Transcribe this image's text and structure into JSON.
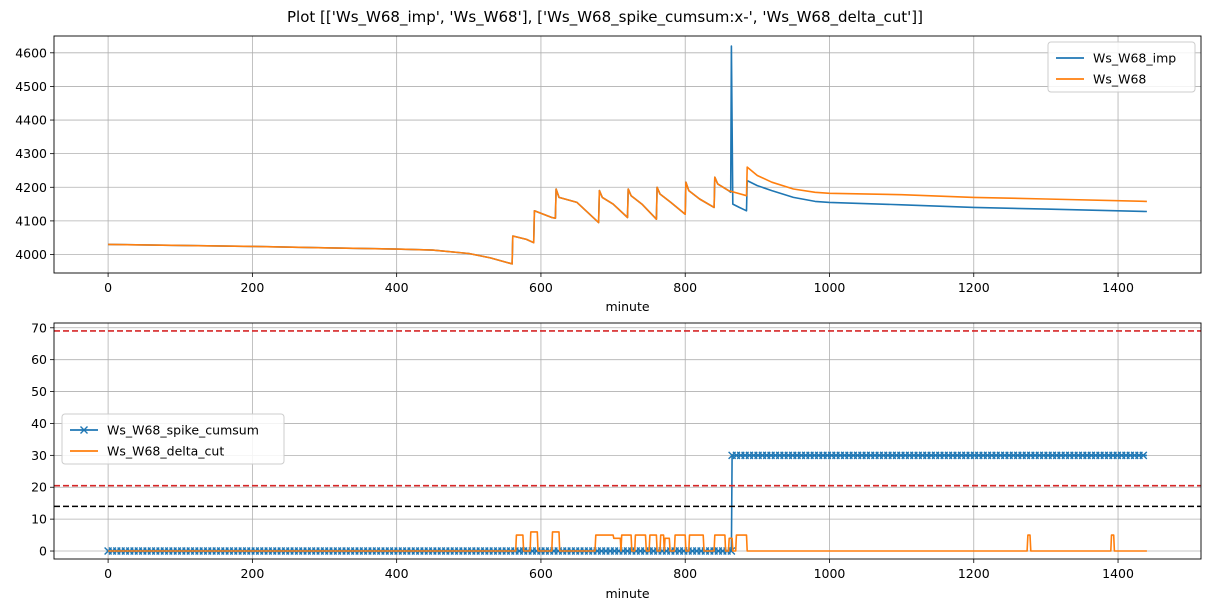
{
  "figure": {
    "title": "Plot [['Ws_W68_imp', 'Ws_W68'], ['Ws_W68_spike_cumsum:x-', 'Ws_W68_delta_cut']]"
  },
  "chart_data": [
    {
      "type": "line",
      "xlabel": "minute",
      "ylabel": "",
      "xlim": [
        -75,
        1515
      ],
      "ylim": [
        3945,
        4650
      ],
      "xticks": [
        0,
        200,
        400,
        600,
        800,
        1000,
        1200,
        1400
      ],
      "yticks": [
        4000,
        4100,
        4200,
        4300,
        4400,
        4500,
        4600
      ],
      "grid": true,
      "legend_position": "upper right",
      "series": [
        {
          "name": "Ws_W68_imp",
          "color": "#1f77b4",
          "points": [
            [
              0,
              4030
            ],
            [
              100,
              4027
            ],
            [
              200,
              4024
            ],
            [
              300,
              4020
            ],
            [
              400,
              4016
            ],
            [
              450,
              4013
            ],
            [
              500,
              4003
            ],
            [
              530,
              3990
            ],
            [
              560,
              3972
            ],
            [
              561,
              4055
            ],
            [
              580,
              4045
            ],
            [
              590,
              4035
            ],
            [
              591,
              4130
            ],
            [
              615,
              4110
            ],
            [
              620,
              4108
            ],
            [
              621,
              4195
            ],
            [
              625,
              4170
            ],
            [
              650,
              4155
            ],
            [
              680,
              4095
            ],
            [
              681,
              4190
            ],
            [
              685,
              4170
            ],
            [
              700,
              4150
            ],
            [
              720,
              4110
            ],
            [
              721,
              4195
            ],
            [
              725,
              4175
            ],
            [
              740,
              4150
            ],
            [
              760,
              4105
            ],
            [
              761,
              4200
            ],
            [
              765,
              4180
            ],
            [
              780,
              4155
            ],
            [
              800,
              4120
            ],
            [
              801,
              4215
            ],
            [
              805,
              4190
            ],
            [
              820,
              4165
            ],
            [
              840,
              4140
            ],
            [
              841,
              4230
            ],
            [
              845,
              4210
            ],
            [
              860,
              4190
            ],
            [
              863,
              4185
            ],
            [
              864,
              4620
            ],
            [
              866,
              4150
            ],
            [
              875,
              4140
            ],
            [
              885,
              4130
            ],
            [
              886,
              4220
            ],
            [
              900,
              4205
            ],
            [
              920,
              4190
            ],
            [
              950,
              4170
            ],
            [
              980,
              4158
            ],
            [
              1000,
              4155
            ],
            [
              1100,
              4148
            ],
            [
              1200,
              4140
            ],
            [
              1300,
              4135
            ],
            [
              1440,
              4128
            ]
          ]
        },
        {
          "name": "Ws_W68",
          "color": "#ff7f0e",
          "points": [
            [
              0,
              4030
            ],
            [
              100,
              4027
            ],
            [
              200,
              4024
            ],
            [
              300,
              4020
            ],
            [
              400,
              4016
            ],
            [
              450,
              4013
            ],
            [
              500,
              4003
            ],
            [
              530,
              3990
            ],
            [
              560,
              3972
            ],
            [
              561,
              4055
            ],
            [
              580,
              4045
            ],
            [
              590,
              4035
            ],
            [
              591,
              4130
            ],
            [
              615,
              4110
            ],
            [
              620,
              4108
            ],
            [
              621,
              4195
            ],
            [
              625,
              4170
            ],
            [
              650,
              4155
            ],
            [
              680,
              4095
            ],
            [
              681,
              4190
            ],
            [
              685,
              4170
            ],
            [
              700,
              4150
            ],
            [
              720,
              4110
            ],
            [
              721,
              4195
            ],
            [
              725,
              4175
            ],
            [
              740,
              4150
            ],
            [
              760,
              4105
            ],
            [
              761,
              4200
            ],
            [
              765,
              4180
            ],
            [
              780,
              4155
            ],
            [
              800,
              4120
            ],
            [
              801,
              4215
            ],
            [
              805,
              4190
            ],
            [
              820,
              4165
            ],
            [
              840,
              4140
            ],
            [
              841,
              4230
            ],
            [
              845,
              4210
            ],
            [
              860,
              4190
            ],
            [
              885,
              4175
            ],
            [
              886,
              4260
            ],
            [
              900,
              4235
            ],
            [
              920,
              4215
            ],
            [
              950,
              4195
            ],
            [
              980,
              4185
            ],
            [
              1000,
              4182
            ],
            [
              1100,
              4178
            ],
            [
              1200,
              4170
            ],
            [
              1300,
              4165
            ],
            [
              1440,
              4158
            ]
          ]
        }
      ]
    },
    {
      "type": "line",
      "xlabel": "minute",
      "ylabel": "",
      "xlim": [
        -75,
        1515
      ],
      "ylim": [
        -2.5,
        71.5
      ],
      "xticks": [
        0,
        200,
        400,
        600,
        800,
        1000,
        1200,
        1400
      ],
      "yticks": [
        0,
        10,
        20,
        30,
        40,
        50,
        60,
        70
      ],
      "grid": true,
      "legend_position": "center left",
      "hlines": [
        {
          "y": 69,
          "color": "#d62728"
        },
        {
          "y": 20.5,
          "color": "#d62728"
        },
        {
          "y": 14,
          "color": "#000000"
        }
      ],
      "series": [
        {
          "name": "Ws_W68_spike_cumsum",
          "color": "#1f77b4",
          "marker": "x",
          "points": [
            [
              0,
              0
            ],
            [
              864,
              0
            ],
            [
              865,
              30
            ],
            [
              1440,
              30
            ]
          ]
        },
        {
          "name": "Ws_W68_delta_cut",
          "color": "#ff7f0e",
          "points": [
            [
              0,
              0
            ],
            [
              565,
              0
            ],
            [
              566,
              5
            ],
            [
              575,
              5
            ],
            [
              576,
              0
            ],
            [
              585,
              0
            ],
            [
              586,
              6
            ],
            [
              595,
              6
            ],
            [
              596,
              0
            ],
            [
              615,
              0
            ],
            [
              616,
              6
            ],
            [
              625,
              6
            ],
            [
              626,
              0
            ],
            [
              675,
              0
            ],
            [
              676,
              5
            ],
            [
              700,
              5
            ],
            [
              701,
              4
            ],
            [
              710,
              4
            ],
            [
              711,
              0
            ],
            [
              712,
              5
            ],
            [
              725,
              5
            ],
            [
              726,
              0
            ],
            [
              730,
              0
            ],
            [
              731,
              5
            ],
            [
              745,
              5
            ],
            [
              746,
              0
            ],
            [
              750,
              0
            ],
            [
              751,
              5
            ],
            [
              760,
              5
            ],
            [
              761,
              0
            ],
            [
              765,
              0
            ],
            [
              766,
              5
            ],
            [
              770,
              5
            ],
            [
              771,
              0
            ],
            [
              772,
              4
            ],
            [
              778,
              4
            ],
            [
              779,
              0
            ],
            [
              785,
              0
            ],
            [
              786,
              5
            ],
            [
              800,
              5
            ],
            [
              801,
              0
            ],
            [
              805,
              0
            ],
            [
              806,
              5
            ],
            [
              825,
              5
            ],
            [
              826,
              0
            ],
            [
              840,
              0
            ],
            [
              841,
              5
            ],
            [
              855,
              5
            ],
            [
              856,
              0
            ],
            [
              860,
              0
            ],
            [
              861,
              4
            ],
            [
              865,
              4
            ],
            [
              866,
              0
            ],
            [
              870,
              0
            ],
            [
              871,
              5
            ],
            [
              885,
              5
            ],
            [
              886,
              0
            ],
            [
              1274,
              0
            ],
            [
              1275,
              5
            ],
            [
              1278,
              5
            ],
            [
              1279,
              0
            ],
            [
              1390,
              0
            ],
            [
              1391,
              5
            ],
            [
              1394,
              5
            ],
            [
              1395,
              0
            ],
            [
              1440,
              0
            ]
          ]
        }
      ]
    }
  ]
}
